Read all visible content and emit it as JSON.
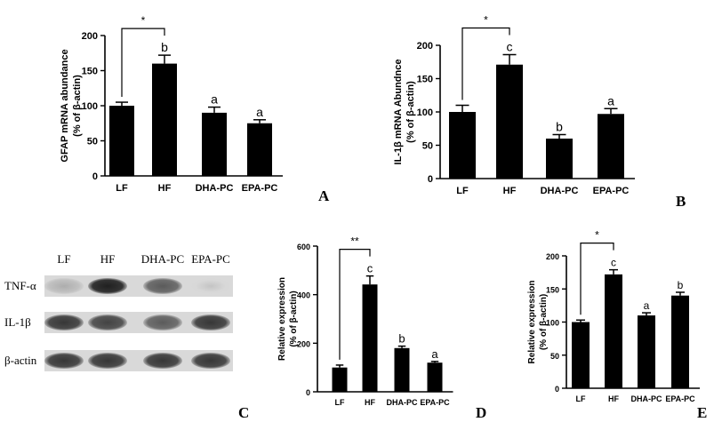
{
  "panels": {
    "A": "A",
    "B": "B",
    "C": "C",
    "D": "D",
    "E": "E"
  },
  "chart_data": [
    {
      "panel": "A",
      "type": "bar",
      "categories": [
        "LF",
        "HF",
        "DHA-PC",
        "EPA-PC"
      ],
      "values": [
        100,
        160,
        90,
        75
      ],
      "errors": [
        5,
        12,
        8,
        5
      ],
      "letters": [
        "",
        "b",
        "a",
        "a"
      ],
      "ylabel": [
        "GFAP mRNA abundance",
        "(% of β-actin)"
      ],
      "ylim": [
        0,
        200
      ],
      "yticks": [
        0,
        50,
        100,
        150,
        200
      ],
      "significance": {
        "from": 0,
        "to": 1,
        "label": "*"
      }
    },
    {
      "panel": "B",
      "type": "bar",
      "categories": [
        "LF",
        "HF",
        "DHA-PC",
        "EPA-PC"
      ],
      "values": [
        100,
        171,
        60,
        97
      ],
      "errors": [
        10,
        15,
        6,
        8
      ],
      "letters": [
        "",
        "c",
        "b",
        "a"
      ],
      "ylabel": [
        "IL-1β mRNA Abundnce",
        "(% of β-actin)"
      ],
      "ylim": [
        0,
        200
      ],
      "yticks": [
        0,
        50,
        100,
        150,
        200
      ],
      "significance": {
        "from": 0,
        "to": 1,
        "label": "*"
      }
    },
    {
      "panel": "D",
      "type": "bar",
      "categories": [
        "LF",
        "HF",
        "DHA-PC",
        "EPA-PC"
      ],
      "values": [
        100,
        442,
        180,
        120
      ],
      "errors": [
        10,
        35,
        8,
        5
      ],
      "letters": [
        "",
        "c",
        "b",
        "a"
      ],
      "ylabel": [
        "Relative expression",
        "(% of β-actin)"
      ],
      "ylim": [
        0,
        600
      ],
      "yticks": [
        0,
        200,
        400,
        600
      ],
      "significance": {
        "from": 0,
        "to": 1,
        "label": "**"
      }
    },
    {
      "panel": "E",
      "type": "bar",
      "categories": [
        "LF",
        "HF",
        "DHA-PC",
        "EPA-PC"
      ],
      "values": [
        100,
        172,
        110,
        140
      ],
      "errors": [
        3,
        7,
        4,
        5
      ],
      "letters": [
        "",
        "c",
        "a",
        "b"
      ],
      "ylabel": [
        "Relative expression",
        "(% of β-actin)"
      ],
      "ylim": [
        0,
        200
      ],
      "yticks": [
        0,
        50,
        100,
        150,
        200
      ],
      "significance": {
        "from": 0,
        "to": 1,
        "label": "*"
      }
    }
  ],
  "blot": {
    "panel": "C",
    "lanes": [
      "LF",
      "HF",
      "DHA-PC",
      "EPA-PC"
    ],
    "rows": [
      {
        "label": "TNF-α",
        "intensity": [
          0.35,
          0.95,
          0.7,
          0.25
        ]
      },
      {
        "label": "IL-1β",
        "intensity": [
          0.85,
          0.8,
          0.7,
          0.85
        ]
      },
      {
        "label": "β-actin",
        "intensity": [
          0.85,
          0.85,
          0.85,
          0.85
        ]
      }
    ]
  }
}
